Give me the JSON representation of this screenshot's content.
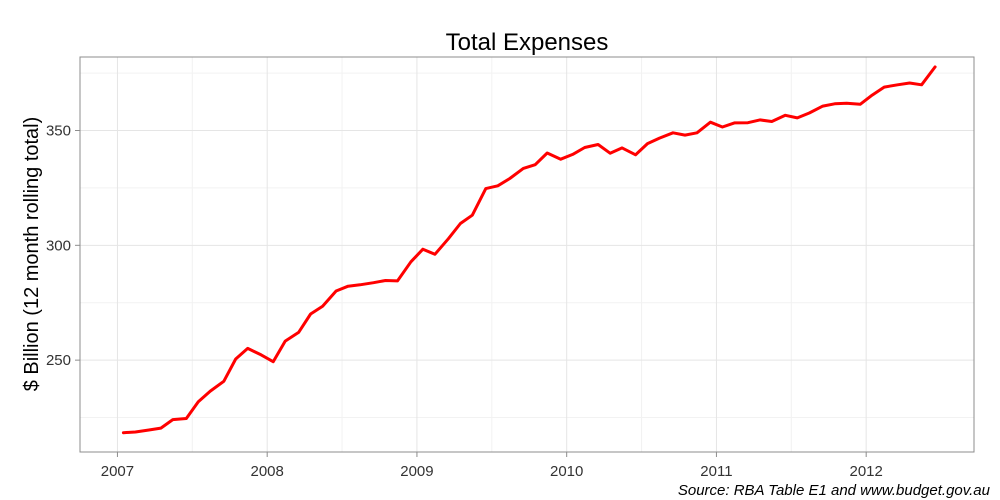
{
  "chart_data": {
    "type": "line",
    "title": "Total Expenses",
    "xlabel": "",
    "ylabel": "$ Billion (12 month rolling total)",
    "source": "Source: RBA Table E1 and www.budget.gov.au",
    "xlim": [
      2006.75,
      2012.72
    ],
    "ylim": [
      210,
      382
    ],
    "x_ticks": [
      2007,
      2008,
      2009,
      2010,
      2011,
      2012
    ],
    "x_tick_labels": [
      "2007",
      "2008",
      "2009",
      "2010",
      "2011",
      "2012"
    ],
    "y_ticks": [
      250,
      300,
      350
    ],
    "y_tick_labels": [
      "250",
      "300",
      "350"
    ],
    "grid": true,
    "colors": {
      "series": "#ff0000",
      "grid": "#e5e5e5",
      "border": "#8c8c8c"
    },
    "series": [
      {
        "x": [
          2007.04,
          2007.12,
          2007.21,
          2007.29,
          2007.37,
          2007.46,
          2007.54,
          2007.62,
          2007.71,
          2007.79,
          2007.87,
          2007.96,
          2008.04,
          2008.12,
          2008.21,
          2008.29,
          2008.37,
          2008.46,
          2008.54,
          2008.62,
          2008.71,
          2008.79,
          2008.87,
          2008.96,
          2009.04,
          2009.12,
          2009.21,
          2009.29,
          2009.37,
          2009.46,
          2009.54,
          2009.62,
          2009.71,
          2009.79,
          2009.87,
          2009.96,
          2010.04,
          2010.12,
          2010.21,
          2010.29,
          2010.37,
          2010.46,
          2010.54,
          2010.62,
          2010.71,
          2010.79,
          2010.87,
          2010.96,
          2011.04,
          2011.12,
          2011.21,
          2011.29,
          2011.37,
          2011.46,
          2011.54,
          2011.62,
          2011.71,
          2011.79,
          2011.87,
          2011.96,
          2012.04,
          2012.12,
          2012.21,
          2012.29,
          2012.37,
          2012.46
        ],
        "values": [
          218.4,
          218.7,
          219.6,
          220.4,
          224.1,
          224.6,
          231.9,
          236.5,
          240.8,
          250.5,
          255.1,
          252.3,
          249.3,
          258.3,
          262.1,
          270.1,
          273.5,
          280.1,
          282.2,
          282.8,
          283.7,
          284.7,
          284.5,
          292.8,
          298.3,
          296.1,
          302.9,
          309.5,
          313.1,
          324.7,
          325.9,
          329.1,
          333.5,
          335.1,
          340.2,
          337.5,
          339.6,
          342.6,
          343.9,
          340.1,
          342.4,
          339.4,
          344.3,
          346.7,
          349.0,
          348.0,
          349.0,
          353.6,
          351.5,
          353.3,
          353.4,
          354.6,
          353.9,
          356.6,
          355.5,
          357.6,
          360.6,
          361.6,
          361.9,
          361.4,
          365.4,
          368.9,
          369.9,
          370.7,
          369.9,
          377.7
        ]
      }
    ]
  }
}
